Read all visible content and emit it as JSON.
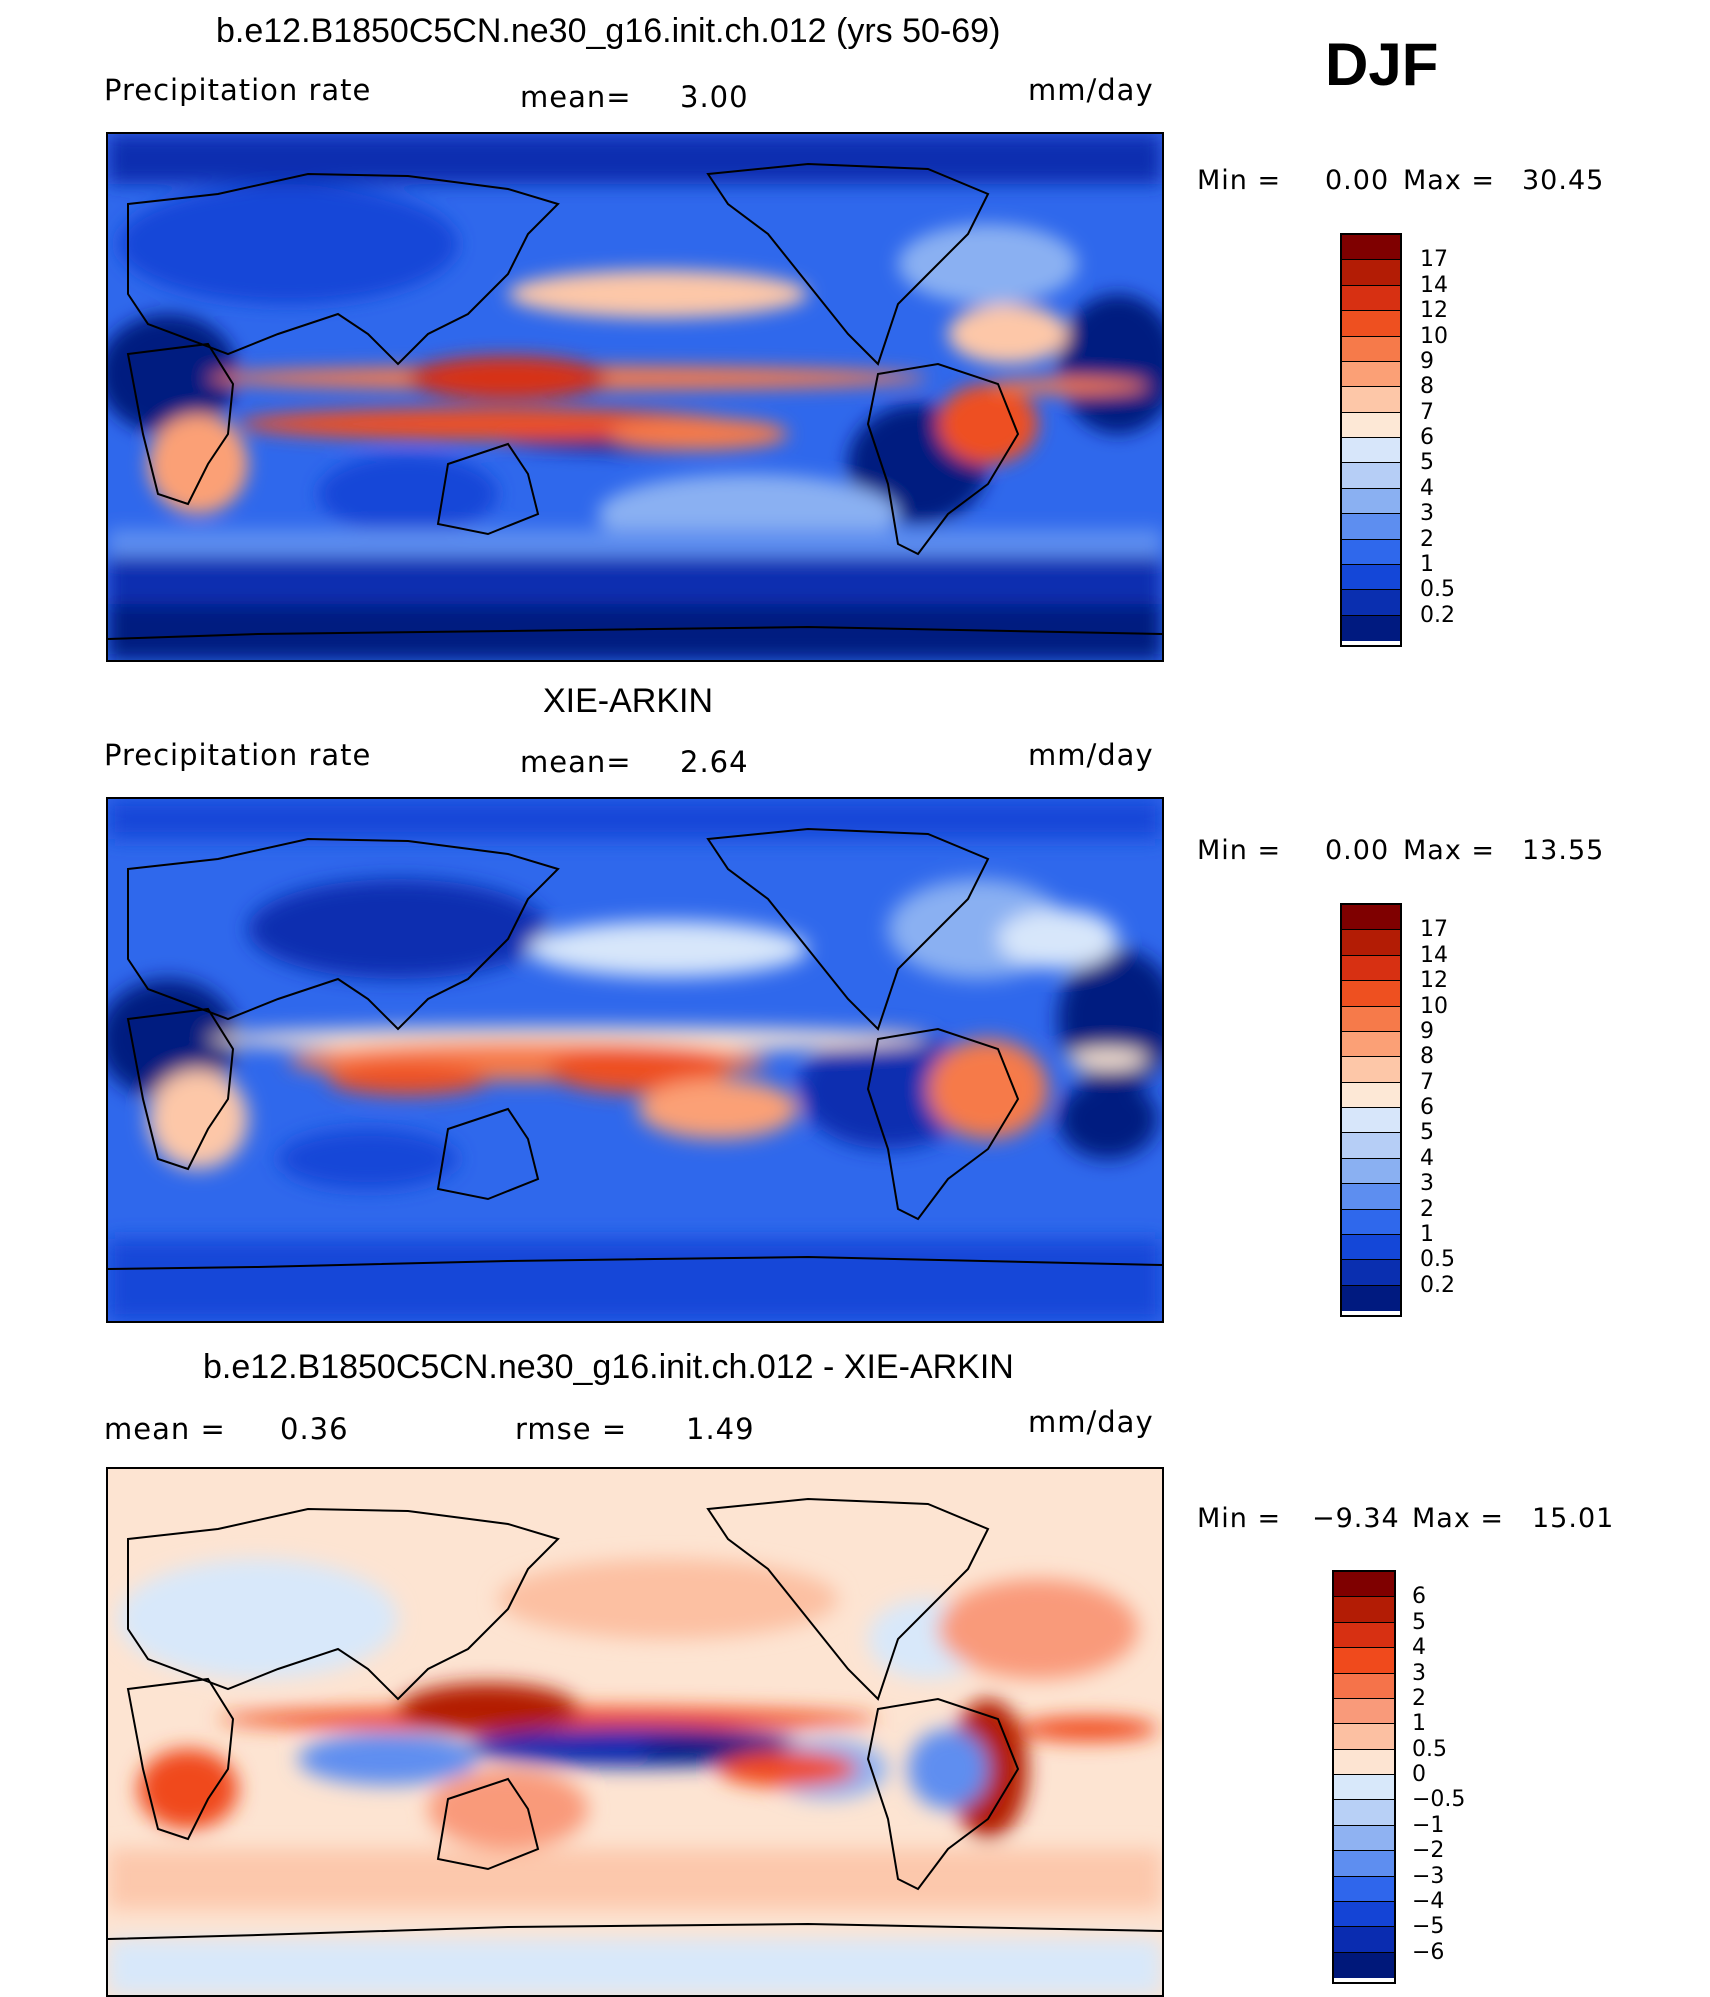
{
  "season": "DJF",
  "panels": [
    {
      "title": "b.e12.B1850C5CN.ne30_g16.init.ch.012 (yrs 50-69)",
      "left_label": "Precipitation  rate",
      "mid_label": "mean=",
      "mid_value": "3.00",
      "units": "mm/day",
      "min_label": "Min  =",
      "min_value": "0.00",
      "max_label": "Max  =",
      "max_value": "30.45"
    },
    {
      "title": "XIE-ARKIN",
      "left_label": "Precipitation  rate",
      "mid_label": "mean=",
      "mid_value": "2.64",
      "units": "mm/day",
      "min_label": "Min  =",
      "min_value": "0.00",
      "max_label": "Max  =",
      "max_value": "13.55"
    },
    {
      "title": "b.e12.B1850C5CN.ne30_g16.init.ch.012 - XIE-ARKIN",
      "left_label": "mean  =",
      "left_value": "0.36",
      "mid_label": "rmse  =",
      "mid_value": "1.49",
      "units": "mm/day",
      "min_label": "Min  =",
      "min_value": "−9.34",
      "max_label": "Max  =",
      "max_value": "15.01"
    }
  ],
  "colorbars": {
    "precip": {
      "labels": [
        "17",
        "14",
        "12",
        "10",
        "9",
        "8",
        "7",
        "6",
        "5",
        "4",
        "3",
        "2",
        "1",
        "0.5",
        "0.2"
      ],
      "colors": [
        "#7f0000",
        "#b31c05",
        "#d73012",
        "#ee5020",
        "#f67a4a",
        "#fba076",
        "#fdc7a8",
        "#fde8d6",
        "#d7e6fa",
        "#b6cef6",
        "#8ab0f2",
        "#5d8ef0",
        "#2f68ec",
        "#1447d8",
        "#0a2fb0",
        "#001a80"
      ]
    },
    "diff": {
      "labels": [
        "6",
        "5",
        "4",
        "3",
        "2",
        "1",
        "0.5",
        "0",
        "−0.5",
        "−1",
        "−2",
        "−3",
        "−4",
        "−5",
        "−6"
      ],
      "colors": [
        "#7f0000",
        "#b31c05",
        "#d73012",
        "#f04a1c",
        "#f5734a",
        "#f99a7a",
        "#fcc0a2",
        "#fde4d2",
        "#d8e8fa",
        "#b8d0f6",
        "#8fb2f2",
        "#5e8ef0",
        "#2f66ec",
        "#1444d6",
        "#0a2cb0",
        "#00187a"
      ]
    }
  },
  "chart_data": [
    {
      "type": "heatmap",
      "title": "b.e12.B1850C5CN.ne30_g16.init.ch.012 (yrs 50-69)",
      "variable": "Precipitation rate",
      "units": "mm/day",
      "season": "DJF",
      "mean": 3.0,
      "min": 0.0,
      "max": 30.45,
      "contour_levels": [
        0.2,
        0.5,
        1,
        2,
        3,
        4,
        5,
        6,
        7,
        8,
        9,
        10,
        12,
        14,
        17
      ]
    },
    {
      "type": "heatmap",
      "title": "XIE-ARKIN",
      "variable": "Precipitation rate",
      "units": "mm/day",
      "season": "DJF",
      "mean": 2.64,
      "min": 0.0,
      "max": 13.55,
      "contour_levels": [
        0.2,
        0.5,
        1,
        2,
        3,
        4,
        5,
        6,
        7,
        8,
        9,
        10,
        12,
        14,
        17
      ]
    },
    {
      "type": "heatmap",
      "title": "b.e12.B1850C5CN.ne30_g16.init.ch.012 - XIE-ARKIN",
      "units": "mm/day",
      "season": "DJF",
      "mean": 0.36,
      "rmse": 1.49,
      "min": -9.34,
      "max": 15.01,
      "contour_levels": [
        -6,
        -5,
        -4,
        -3,
        -2,
        -1,
        -0.5,
        0,
        0.5,
        1,
        2,
        3,
        4,
        5,
        6
      ]
    }
  ]
}
